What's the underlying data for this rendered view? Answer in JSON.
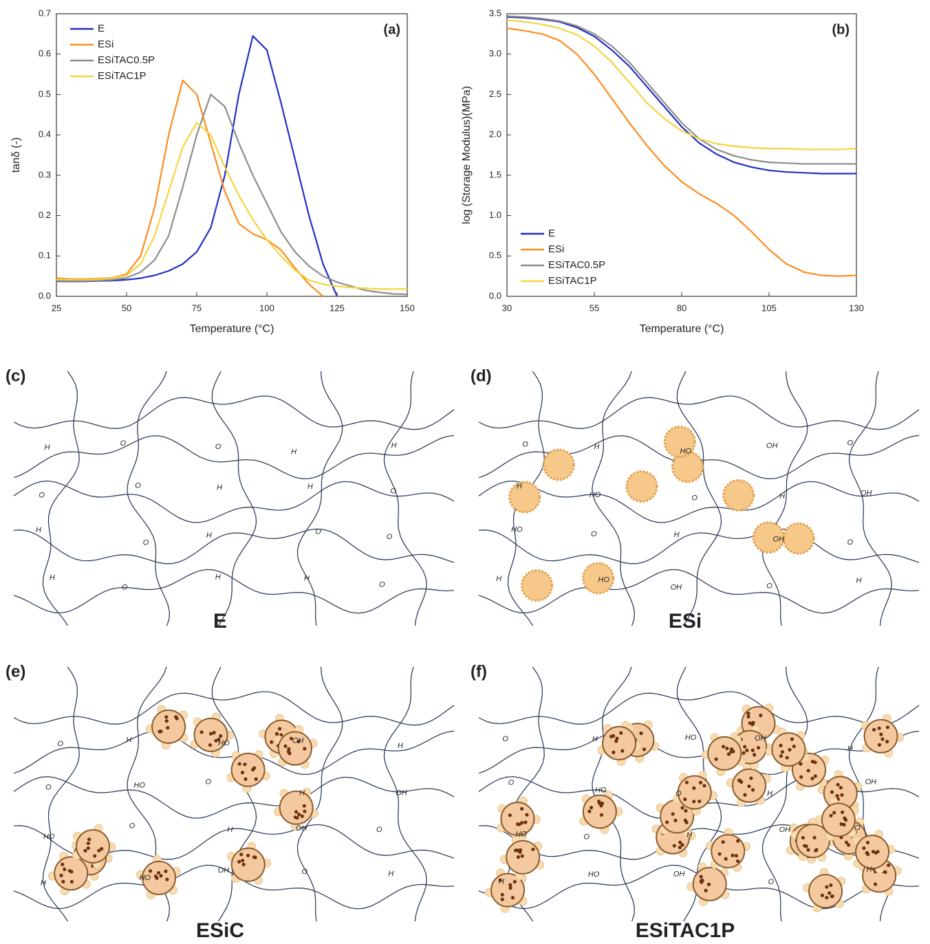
{
  "chart_data": [
    {
      "type": "line",
      "title": "(a)",
      "xlabel": "Temperature (°C)",
      "ylabel": "tanδ (-)",
      "x": [
        25,
        30,
        35,
        40,
        45,
        50,
        55,
        60,
        65,
        70,
        75,
        80,
        85,
        90,
        95,
        100,
        105,
        110,
        115,
        120,
        125,
        130,
        135,
        140,
        145,
        150
      ],
      "series": [
        {
          "name": "E",
          "color": "#1f2fc4",
          "values": [
            0.037,
            0.037,
            0.037,
            0.038,
            0.039,
            0.041,
            0.045,
            0.052,
            0.063,
            0.08,
            0.11,
            0.17,
            0.3,
            0.5,
            0.645,
            0.61,
            0.48,
            0.34,
            0.2,
            0.08,
            0.0,
            null,
            null,
            null,
            null,
            null
          ]
        },
        {
          "name": "ESi",
          "color": "#ff8a1c",
          "values": [
            0.045,
            0.043,
            0.043,
            0.044,
            0.046,
            0.055,
            0.1,
            0.22,
            0.4,
            0.535,
            0.5,
            0.38,
            0.26,
            0.18,
            0.155,
            0.14,
            0.115,
            0.07,
            0.03,
            0.0,
            null,
            null,
            null,
            null,
            null,
            null
          ]
        },
        {
          "name": "ESiTAC0.5P",
          "color": "#8c8c8c",
          "values": [
            0.038,
            0.038,
            0.038,
            0.039,
            0.041,
            0.046,
            0.06,
            0.09,
            0.15,
            0.27,
            0.4,
            0.5,
            0.47,
            0.38,
            0.3,
            0.23,
            0.16,
            0.11,
            0.075,
            0.05,
            0.035,
            0.025,
            0.015,
            0.01,
            0.006,
            0.005
          ]
        },
        {
          "name": "ESiTAC1P",
          "color": "#f6d33c",
          "values": [
            0.042,
            0.041,
            0.041,
            0.042,
            0.045,
            0.052,
            0.08,
            0.15,
            0.26,
            0.37,
            0.43,
            0.4,
            0.32,
            0.25,
            0.19,
            0.14,
            0.1,
            0.065,
            0.04,
            0.03,
            0.025,
            0.022,
            0.02,
            0.018,
            0.018,
            0.018
          ]
        }
      ],
      "xlim": [
        25,
        150
      ],
      "xticks": [
        25,
        50,
        75,
        100,
        125,
        150
      ],
      "ylim": [
        0,
        0.7
      ],
      "yticks": [
        {
          "value": 0,
          "label": "0.0"
        },
        0.1,
        0.2,
        0.3,
        0.4,
        0.5,
        0.6,
        0.7
      ],
      "legend": "upper left"
    },
    {
      "type": "line",
      "title": "(b)",
      "xlabel": "Temperature (°C)",
      "ylabel": "log (Storage Modulus)(MPa)",
      "x": [
        30,
        35,
        40,
        45,
        50,
        55,
        60,
        65,
        70,
        75,
        80,
        85,
        90,
        95,
        100,
        105,
        110,
        115,
        120,
        125,
        130
      ],
      "series": [
        {
          "name": "E",
          "color": "#1f2fc4",
          "values": [
            3.46,
            3.45,
            3.43,
            3.4,
            3.33,
            3.22,
            3.05,
            2.85,
            2.6,
            2.35,
            2.1,
            1.9,
            1.76,
            1.66,
            1.6,
            1.56,
            1.54,
            1.53,
            1.52,
            1.52,
            1.52
          ]
        },
        {
          "name": "ESi",
          "color": "#ff8a1c",
          "values": [
            3.32,
            3.29,
            3.25,
            3.17,
            3.0,
            2.75,
            2.45,
            2.15,
            1.87,
            1.62,
            1.42,
            1.27,
            1.15,
            1.0,
            0.8,
            0.58,
            0.4,
            0.3,
            0.26,
            0.25,
            0.26
          ]
        },
        {
          "name": "ESiTAC0.5P",
          "color": "#8c8c8c",
          "values": [
            3.47,
            3.46,
            3.44,
            3.41,
            3.35,
            3.25,
            3.1,
            2.9,
            2.65,
            2.4,
            2.15,
            1.95,
            1.82,
            1.74,
            1.69,
            1.66,
            1.65,
            1.64,
            1.64,
            1.64,
            1.64
          ]
        },
        {
          "name": "ESiTAC1P",
          "color": "#f6d33c",
          "values": [
            3.42,
            3.4,
            3.37,
            3.32,
            3.24,
            3.1,
            2.9,
            2.65,
            2.4,
            2.2,
            2.05,
            1.95,
            1.89,
            1.86,
            1.84,
            1.83,
            1.83,
            1.82,
            1.82,
            1.82,
            1.83
          ]
        }
      ],
      "xlim": [
        30,
        130
      ],
      "xticks": [
        30,
        55,
        80,
        105,
        130
      ],
      "ylim": [
        0,
        3.5
      ],
      "yticks": [
        {
          "value": 0,
          "label": "0.0"
        },
        0.5,
        {
          "value": 1,
          "label": "1.0"
        },
        1.5,
        {
          "value": 2,
          "label": "2.0"
        },
        2.5,
        {
          "value": 3,
          "label": "3.0"
        },
        3.5
      ],
      "legend": "lower left"
    }
  ],
  "diagrams": [
    {
      "label": "(c)",
      "caption": "E",
      "groups": [
        "H",
        "O",
        "O",
        "H",
        "H",
        "O",
        "O",
        "H",
        "H",
        "O",
        "H",
        "O",
        "H",
        "O",
        "O",
        "H",
        "O",
        "H",
        "H",
        "O"
      ]
    },
    {
      "label": "(d)",
      "caption": "ESi",
      "groups": [
        "O",
        "H",
        "HO",
        "OH",
        "O",
        "H",
        "HO",
        "O",
        "H",
        "OH",
        "HO",
        "O",
        "H",
        "OH",
        "O",
        "H",
        "HO",
        "OH",
        "O",
        "H"
      ]
    },
    {
      "label": "(e)",
      "caption": "ESiC",
      "groups": [
        "O",
        "H",
        "HO",
        "OH",
        "H",
        "O",
        "HO",
        "O",
        "H",
        "OH",
        "HO",
        "O",
        "H",
        "OH",
        "O",
        "H",
        "HO",
        "OH",
        "O",
        "H"
      ]
    },
    {
      "label": "(f)",
      "caption": "ESiTAC1P",
      "groups": [
        "O",
        "H",
        "HO",
        "OH",
        "H",
        "O",
        "HO",
        "O",
        "H",
        "OH",
        "HO",
        "O",
        "H",
        "OH",
        "O",
        "H",
        "HO",
        "OH",
        "O",
        "H"
      ]
    }
  ]
}
